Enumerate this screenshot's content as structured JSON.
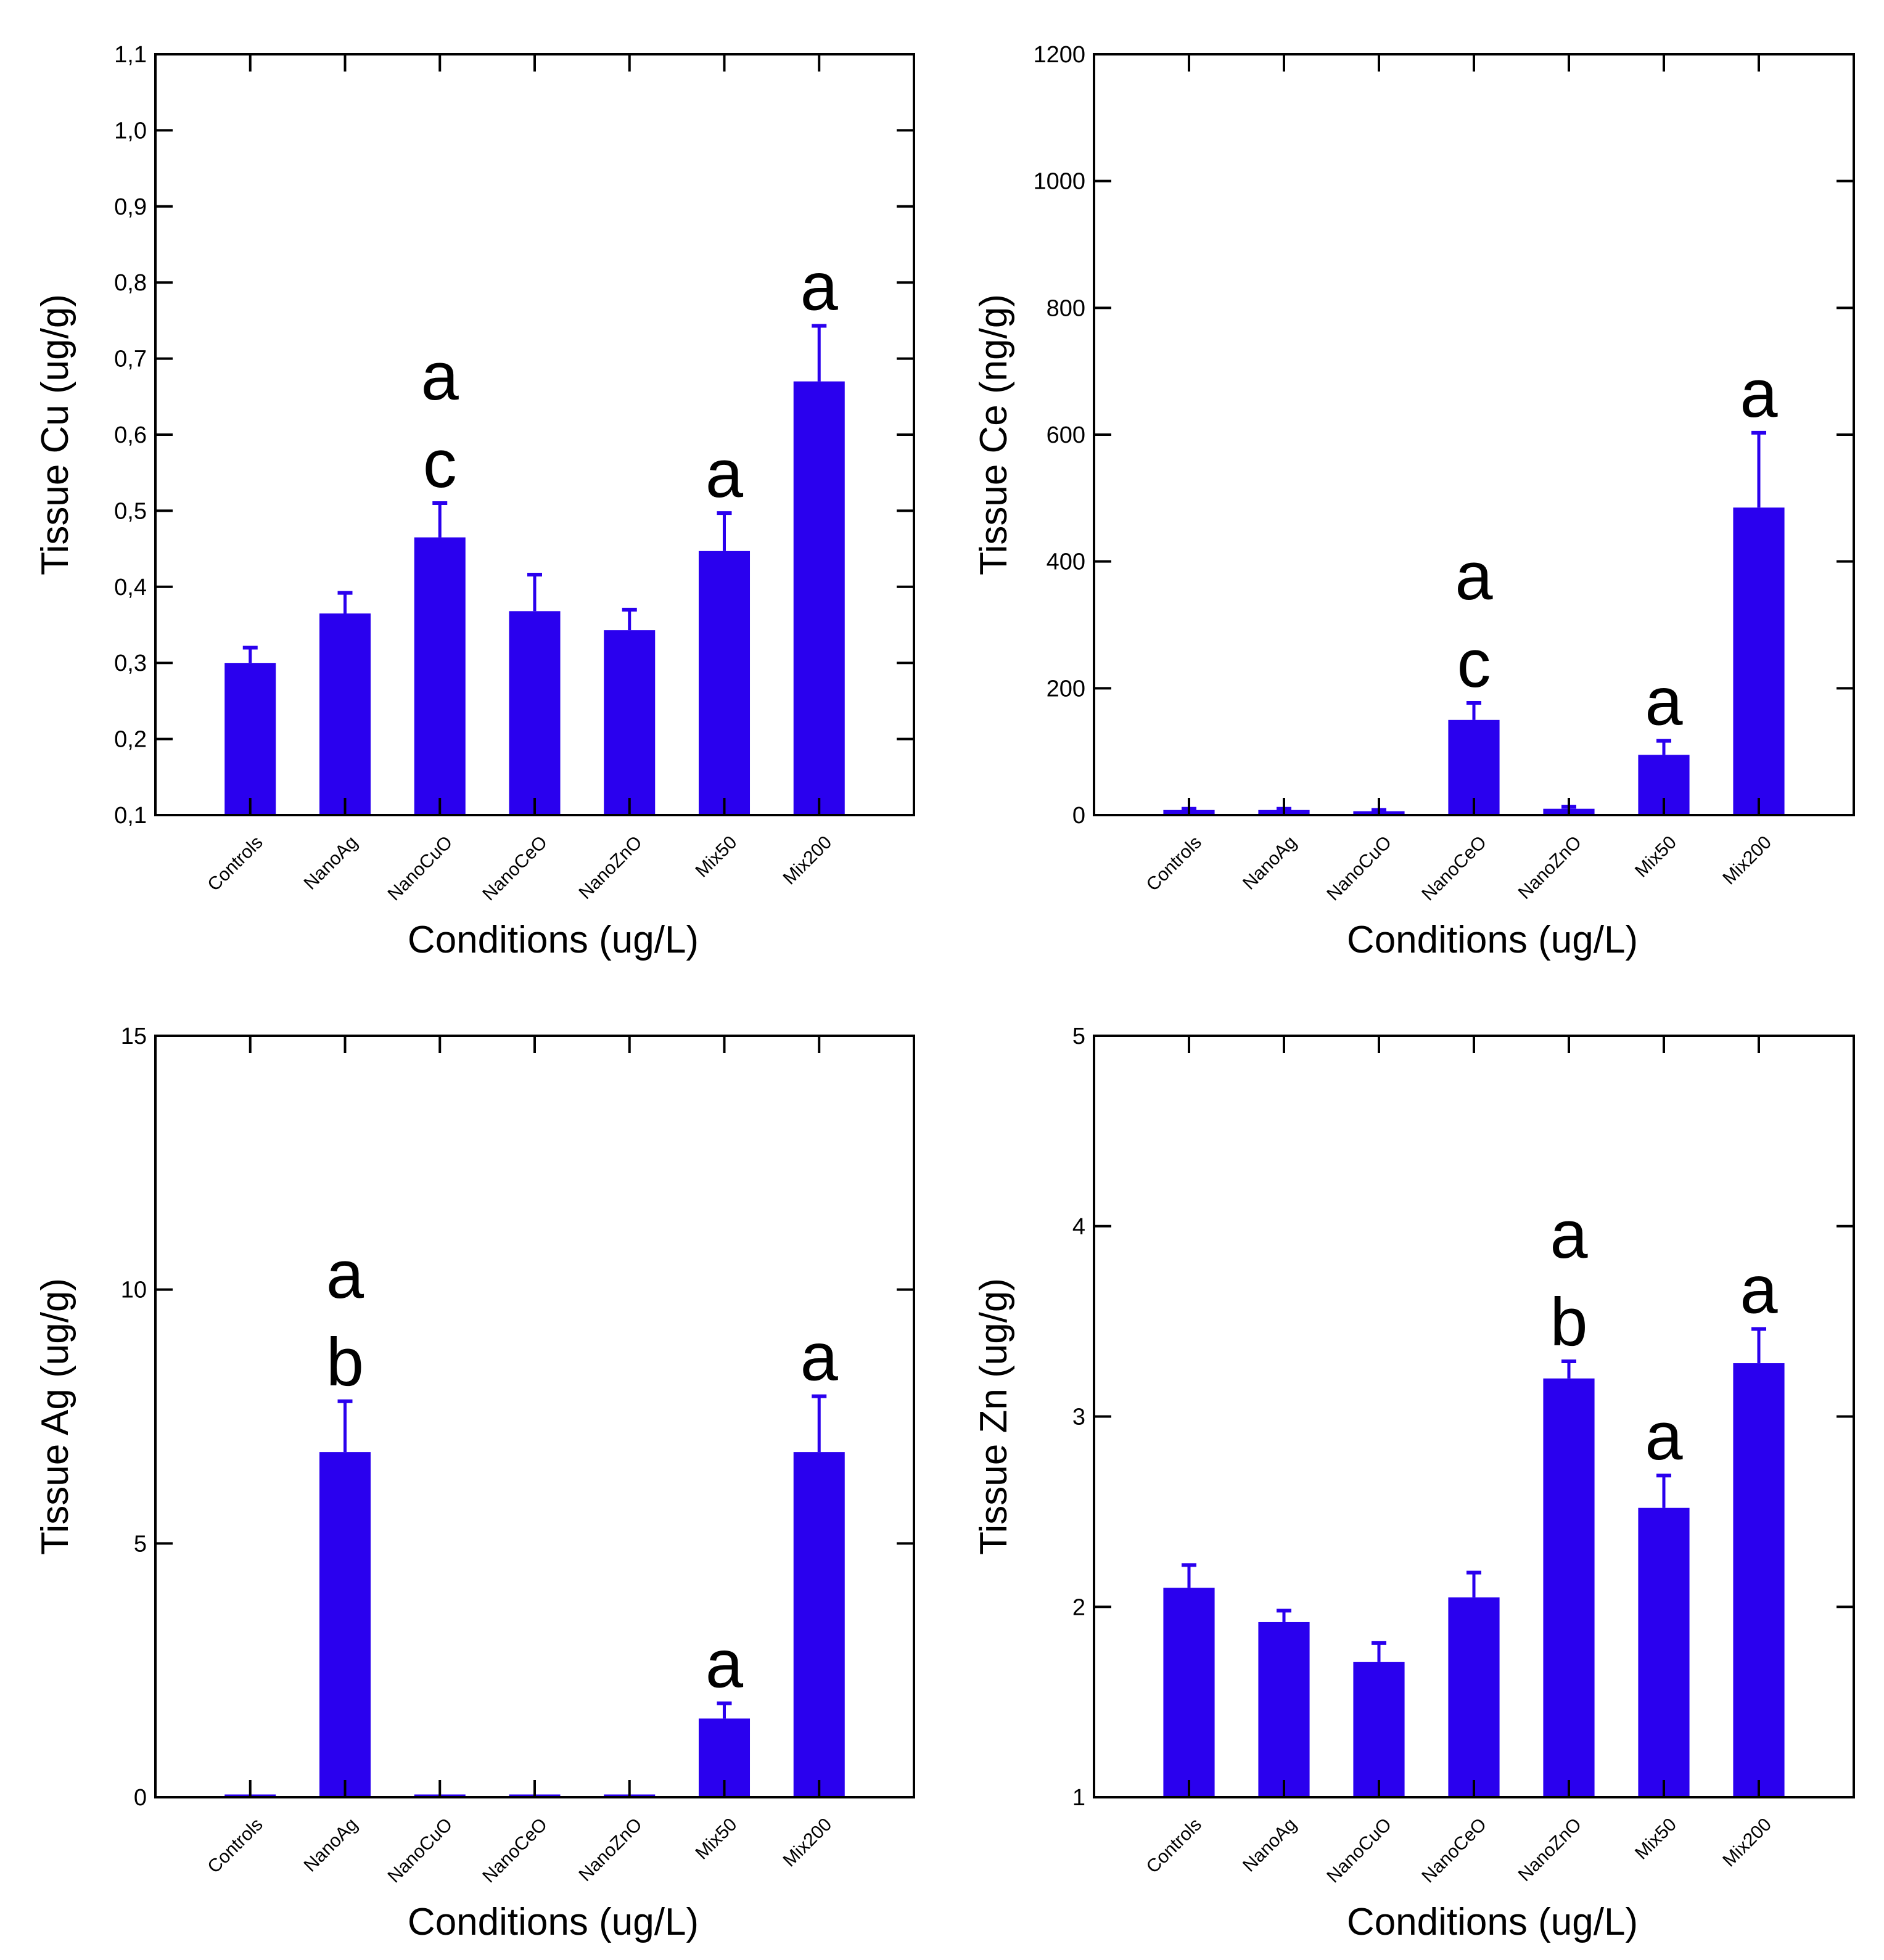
{
  "colors": {
    "bar": "#2a00ee",
    "axis": "#000000",
    "background": "#ffffff"
  },
  "chart_data": [
    {
      "type": "bar",
      "panel": "top-left",
      "categories": [
        "Controls",
        "NanoAg",
        "NanoCuO",
        "NanoCeO",
        "NanoZnO",
        "Mix50",
        "Mix200"
      ],
      "values": [
        0.3,
        0.365,
        0.465,
        0.368,
        0.343,
        0.447,
        0.67
      ],
      "errors": [
        0.02,
        0.027,
        0.045,
        0.048,
        0.027,
        0.05,
        0.073
      ],
      "ylim": [
        0.1,
        1.1
      ],
      "yticks": [
        0.1,
        0.2,
        0.3,
        0.4,
        0.5,
        0.6,
        0.7,
        0.8,
        0.9,
        1.0,
        1.1
      ],
      "ytick_labels": [
        "0,1",
        "0,2",
        "0,3",
        "0,4",
        "0,5",
        "0,6",
        "0,7",
        "0,8",
        "0,9",
        "1,0",
        "1,1"
      ],
      "ylabel": "Tissue Cu (ug/g)",
      "xlabel": "Conditions (ug/L)",
      "annotations": [
        {
          "category": "NanoCuO",
          "lines": [
            "a",
            "c"
          ]
        },
        {
          "category": "Mix50",
          "lines": [
            "a"
          ]
        },
        {
          "category": "Mix200",
          "lines": [
            "a"
          ]
        }
      ]
    },
    {
      "type": "bar",
      "panel": "top-right",
      "categories": [
        "Controls",
        "NanoAg",
        "NanoCuO",
        "NanoCeO",
        "NanoZnO",
        "Mix50",
        "Mix200"
      ],
      "values": [
        8,
        8,
        6,
        150,
        10,
        95,
        485
      ],
      "errors": [
        2,
        2,
        2,
        27,
        3,
        22,
        118
      ],
      "ylim": [
        0,
        1200
      ],
      "yticks": [
        0,
        200,
        400,
        600,
        800,
        1000,
        1200
      ],
      "ytick_labels": [
        "0",
        "200",
        "400",
        "600",
        "800",
        "1000",
        "1200"
      ],
      "ylabel": "Tissue Ce (ng/g)",
      "xlabel": "Conditions (ug/L)",
      "annotations": [
        {
          "category": "NanoCeO",
          "lines": [
            "a",
            "c"
          ]
        },
        {
          "category": "Mix50",
          "lines": [
            "a"
          ]
        },
        {
          "category": "Mix200",
          "lines": [
            "a"
          ]
        }
      ]
    },
    {
      "type": "bar",
      "panel": "bottom-left",
      "categories": [
        "Controls",
        "NanoAg",
        "NanoCuO",
        "NanoCeO",
        "NanoZnO",
        "Mix50",
        "Mix200"
      ],
      "values": [
        0,
        6.8,
        0,
        0,
        0,
        1.55,
        6.8
      ],
      "errors": [
        0,
        1.0,
        0,
        0,
        0,
        0.3,
        1.1
      ],
      "ylim": [
        0,
        15
      ],
      "yticks": [
        0,
        5,
        10,
        15
      ],
      "ytick_labels": [
        "0",
        "5",
        "10",
        "15"
      ],
      "ylabel": "Tissue Ag (ug/g)",
      "xlabel": "Conditions (ug/L)",
      "annotations": [
        {
          "category": "NanoAg",
          "lines": [
            "a",
            "b"
          ]
        },
        {
          "category": "Mix50",
          "lines": [
            "a"
          ]
        },
        {
          "category": "Mix200",
          "lines": [
            "a"
          ]
        }
      ]
    },
    {
      "type": "bar",
      "panel": "bottom-right",
      "categories": [
        "Controls",
        "NanoAg",
        "NanoCuO",
        "NanoCeO",
        "NanoZnO",
        "Mix50",
        "Mix200"
      ],
      "values": [
        2.1,
        1.92,
        1.71,
        2.05,
        3.2,
        2.52,
        3.28
      ],
      "errors": [
        0.12,
        0.06,
        0.1,
        0.13,
        0.09,
        0.17,
        0.18
      ],
      "ylim": [
        1,
        5
      ],
      "yticks": [
        1,
        2,
        3,
        4,
        5
      ],
      "ytick_labels": [
        "1",
        "2",
        "3",
        "4",
        "5"
      ],
      "ylabel": "Tissue Zn (ug/g)",
      "xlabel": "Conditions (ug/L)",
      "annotations": [
        {
          "category": "NanoZnO",
          "lines": [
            "a",
            "b"
          ]
        },
        {
          "category": "Mix50",
          "lines": [
            "a"
          ]
        },
        {
          "category": "Mix200",
          "lines": [
            "a"
          ]
        }
      ]
    }
  ]
}
